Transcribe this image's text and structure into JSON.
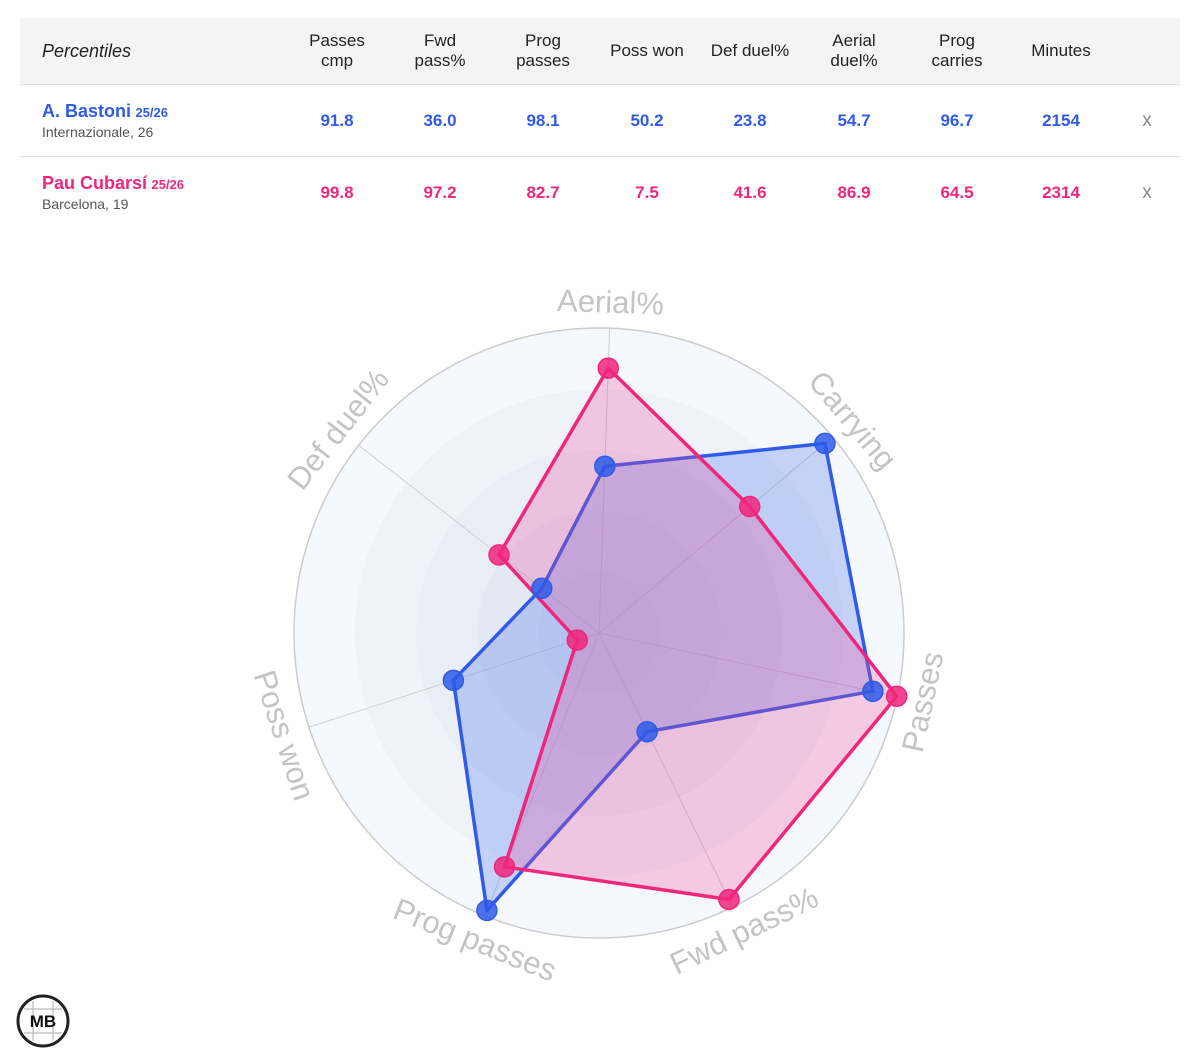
{
  "table": {
    "title": "Percentiles",
    "headers": [
      [
        "Passes",
        "cmp"
      ],
      [
        "Fwd",
        "pass%"
      ],
      [
        "Prog",
        "passes"
      ],
      [
        "Poss won"
      ],
      [
        "Def duel%"
      ],
      [
        "Aerial",
        "duel%"
      ],
      [
        "Prog",
        "carries"
      ],
      [
        "Minutes"
      ]
    ],
    "remove_label": "x",
    "players": [
      {
        "name": "A. Bastoni",
        "season": "25/26",
        "sub": "Internazionale, 26",
        "color": "#2f5be8",
        "values": [
          "91.8",
          "36.0",
          "98.1",
          "50.2",
          "23.8",
          "54.7",
          "96.7",
          "2154"
        ]
      },
      {
        "name": "Pau Cubarsí",
        "season": "25/26",
        "sub": "Barcelona, 19",
        "color": "#f0267d",
        "values": [
          "99.8",
          "97.2",
          "82.7",
          "7.5",
          "41.6",
          "86.9",
          "64.5",
          "2314"
        ]
      }
    ]
  },
  "chart_data": {
    "type": "radar",
    "axes": [
      "Aerial%",
      "Carrying",
      "Passes",
      "Fwd pass%",
      "Prog passes",
      "Poss won",
      "Def duel%"
    ],
    "range": [
      0,
      100
    ],
    "series": [
      {
        "name": "A. Bastoni",
        "color": "#2f5be8",
        "fill": "rgba(70,110,235,0.28)",
        "values": [
          54.7,
          96.7,
          91.8,
          36.0,
          98.1,
          50.2,
          23.8
        ]
      },
      {
        "name": "Pau Cubarsí",
        "color": "#f0267d",
        "fill": "rgba(240,70,150,0.26)",
        "values": [
          86.9,
          64.5,
          99.8,
          97.2,
          82.7,
          7.5,
          41.6
        ]
      }
    ],
    "label_color": "#c4c4c4",
    "gridline_color": "#cccccc",
    "background_color": "#f3f6fb"
  },
  "logo": {
    "text": "MB"
  }
}
